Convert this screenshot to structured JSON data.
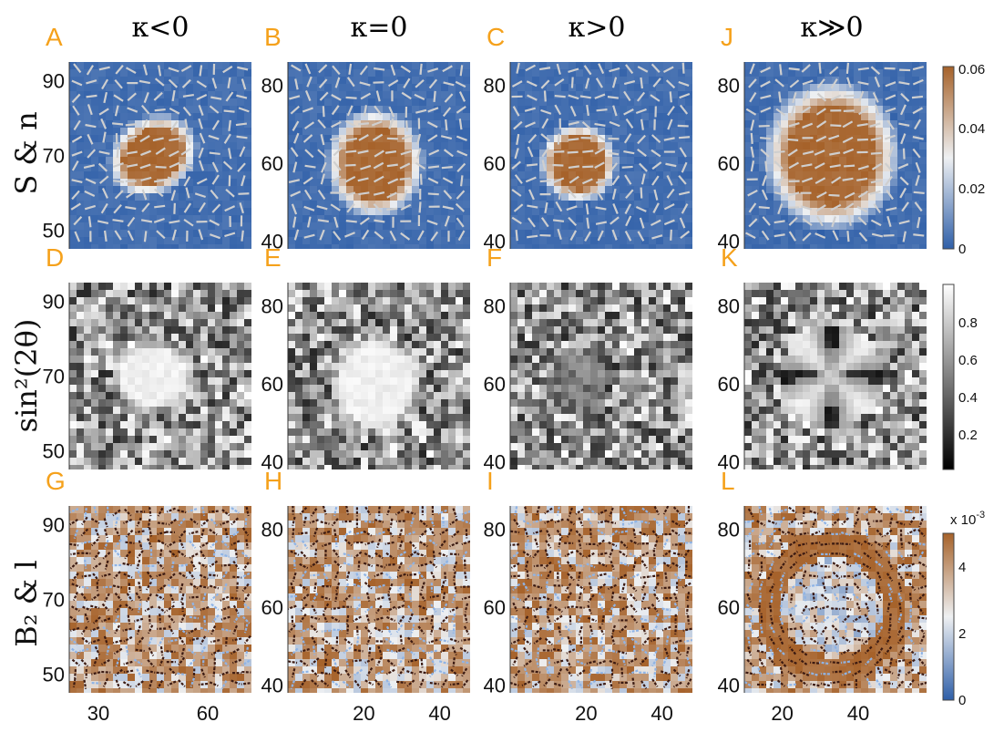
{
  "column_headers": [
    "κ<0",
    "κ=0",
    "κ>0",
    "κ≫0"
  ],
  "row_labels": {
    "row1": "S & n",
    "row2": "sin²(2θ)",
    "row3": "B₂ & l"
  },
  "chart_data": [
    {
      "type": "heatmap",
      "panel": "A",
      "row": 1,
      "col": 1,
      "field": "S",
      "overlay": "director n",
      "blob": {
        "shape": "ellipse",
        "cx": 45,
        "cy": 70,
        "rx": 10,
        "ry": 8,
        "tilt_deg": -35,
        "inside_level": 0.06
      },
      "xlim": [
        22,
        72
      ],
      "ylim": [
        45,
        95
      ],
      "yticks": [
        50,
        70,
        90
      ],
      "xticks": []
    },
    {
      "type": "heatmap",
      "panel": "B",
      "row": 1,
      "col": 2,
      "field": "S",
      "overlay": "director n",
      "blob": {
        "shape": "ellipse",
        "cx": 23,
        "cy": 60,
        "rx": 10,
        "ry": 11,
        "tilt_deg": 0,
        "inside_level": 0.06
      },
      "xlim": [
        0,
        48
      ],
      "ylim": [
        38,
        86
      ],
      "yticks": [
        40,
        60,
        80
      ],
      "xticks": []
    },
    {
      "type": "heatmap",
      "panel": "C",
      "row": 1,
      "col": 3,
      "field": "S",
      "overlay": "director n",
      "blob": {
        "shape": "ellipse",
        "cx": 18,
        "cy": 60,
        "rx": 8,
        "ry": 8,
        "tilt_deg": 0,
        "inside_level": 0.06
      },
      "xlim": [
        0,
        48
      ],
      "ylim": [
        38,
        86
      ],
      "yticks": [
        40,
        60,
        80
      ],
      "xticks": []
    },
    {
      "type": "heatmap",
      "panel": "J",
      "row": 1,
      "col": 4,
      "field": "S",
      "overlay": "director n",
      "blob": {
        "shape": "ellipse",
        "cx": 33,
        "cy": 62,
        "rx": 14,
        "ry": 15,
        "tilt_deg": 0,
        "inside_level": 0.06
      },
      "xlim": [
        10,
        58
      ],
      "ylim": [
        38,
        86
      ],
      "yticks": [
        40,
        60,
        80
      ],
      "xticks": []
    },
    {
      "type": "heatmap",
      "panel": "D",
      "row": 2,
      "col": 1,
      "field": "sin²(2θ)",
      "feature": {
        "kind": "bright-ellipse",
        "cx": 45,
        "cy": 70,
        "rx": 10,
        "ry": 8,
        "level": 0.95
      },
      "xlim": [
        22,
        72
      ],
      "ylim": [
        45,
        95
      ],
      "yticks": [
        50,
        70,
        90
      ],
      "xticks": []
    },
    {
      "type": "heatmap",
      "panel": "E",
      "row": 2,
      "col": 2,
      "field": "sin²(2θ)",
      "feature": {
        "kind": "bright-ellipse",
        "cx": 23,
        "cy": 60,
        "rx": 10,
        "ry": 11,
        "level": 0.95
      },
      "xlim": [
        0,
        48
      ],
      "ylim": [
        38,
        86
      ],
      "yticks": [
        40,
        60,
        80
      ],
      "xticks": []
    },
    {
      "type": "heatmap",
      "panel": "F",
      "row": 2,
      "col": 3,
      "field": "sin²(2θ)",
      "feature": {
        "kind": "dark-disk",
        "cx": 18,
        "cy": 60,
        "r": 8,
        "level": 0.35
      },
      "xlim": [
        0,
        48
      ],
      "ylim": [
        38,
        86
      ],
      "yticks": [
        40,
        60,
        80
      ],
      "xticks": []
    },
    {
      "type": "heatmap",
      "panel": "K",
      "row": 2,
      "col": 4,
      "field": "sin²(2θ)",
      "feature": {
        "kind": "four-lobe-defect",
        "cx": 33,
        "cy": 62,
        "r": 13
      },
      "xlim": [
        10,
        58
      ],
      "ylim": [
        38,
        86
      ],
      "yticks": [
        40,
        60,
        80
      ],
      "xticks": []
    },
    {
      "type": "heatmap",
      "panel": "G",
      "row": 3,
      "col": 1,
      "field": "B₂",
      "overlay": "l",
      "feature": {
        "kind": "noise"
      },
      "xlim": [
        22,
        72
      ],
      "ylim": [
        45,
        95
      ],
      "yticks": [
        50,
        70,
        90
      ],
      "xticks": [
        30,
        60
      ]
    },
    {
      "type": "heatmap",
      "panel": "H",
      "row": 3,
      "col": 2,
      "field": "B₂",
      "overlay": "l",
      "feature": {
        "kind": "noise"
      },
      "xlim": [
        0,
        48
      ],
      "ylim": [
        38,
        86
      ],
      "yticks": [
        40,
        60,
        80
      ],
      "xticks": [
        20,
        40
      ]
    },
    {
      "type": "heatmap",
      "panel": "I",
      "row": 3,
      "col": 3,
      "field": "B₂",
      "overlay": "l",
      "feature": {
        "kind": "noise"
      },
      "xlim": [
        0,
        48
      ],
      "ylim": [
        38,
        86
      ],
      "yticks": [
        40,
        60,
        80
      ],
      "xticks": [
        20,
        40
      ]
    },
    {
      "type": "heatmap",
      "panel": "L",
      "row": 3,
      "col": 4,
      "field": "B₂",
      "overlay": "l",
      "feature": {
        "kind": "ring",
        "cx": 33,
        "cy": 60,
        "r_in": 13,
        "r_out": 20
      },
      "xlim": [
        10,
        58
      ],
      "ylim": [
        38,
        86
      ],
      "yticks": [
        40,
        60,
        80
      ],
      "xticks": [
        20,
        40
      ]
    }
  ],
  "colorbars": [
    {
      "row": 1,
      "colormap": "blue-white-orange",
      "ticks": [
        "0.06",
        "0.04",
        "0.02",
        "0"
      ],
      "tick_values": [
        0.06,
        0.04,
        0.02,
        0
      ],
      "range": [
        0,
        0.06
      ],
      "exponent_label": ""
    },
    {
      "row": 2,
      "colormap": "gray",
      "ticks": [
        "0.8",
        "0.6",
        "0.4",
        "0.2"
      ],
      "tick_values": [
        0.8,
        0.6,
        0.4,
        0.2
      ],
      "range": [
        0,
        1
      ],
      "exponent_label": ""
    },
    {
      "row": 3,
      "colormap": "blue-white-orange",
      "ticks": [
        "4",
        "2",
        "0"
      ],
      "tick_values": [
        4,
        2,
        0
      ],
      "range": [
        0,
        5
      ],
      "exponent_label": "x 10"
    }
  ],
  "colors": {
    "blue": "#2f5fa8",
    "white": "#eef0f2",
    "orange": "#d9823a",
    "brown": "#a6622a",
    "accent": "#f5a11b",
    "stick_light": "#cfcfcf",
    "stick_dark": "#3b1a12"
  }
}
